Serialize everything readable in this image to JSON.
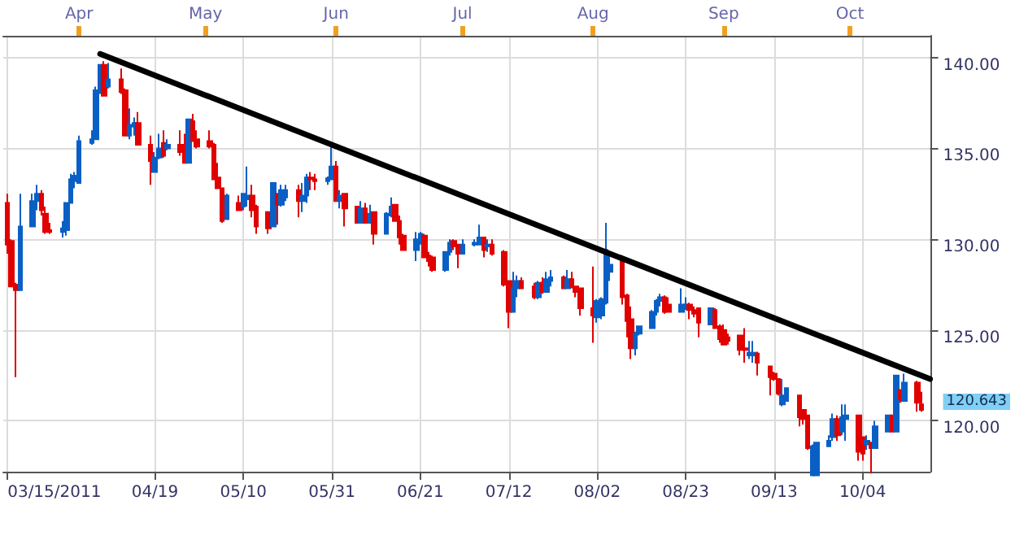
{
  "chart_data": {
    "type": "candlestick",
    "x": [
      "2011-03-15",
      "2011-03-16",
      "2011-03-17",
      "2011-03-18",
      "2011-03-21",
      "2011-03-22",
      "2011-03-23",
      "2011-03-24",
      "2011-03-25",
      "2011-03-28",
      "2011-03-29",
      "2011-03-30",
      "2011-03-31",
      "2011-04-01",
      "2011-04-04",
      "2011-04-05",
      "2011-04-06",
      "2011-04-07",
      "2011-04-08",
      "2011-04-11",
      "2011-04-12",
      "2011-04-13",
      "2011-04-14",
      "2011-04-15",
      "2011-04-18",
      "2011-04-19",
      "2011-04-20",
      "2011-04-21",
      "2011-04-22",
      "2011-04-25",
      "2011-04-26",
      "2011-04-27",
      "2011-04-28",
      "2011-04-29",
      "2011-05-02",
      "2011-05-03",
      "2011-05-04",
      "2011-05-05",
      "2011-05-06",
      "2011-05-09",
      "2011-05-10",
      "2011-05-11",
      "2011-05-12",
      "2011-05-13",
      "2011-05-16",
      "2011-05-17",
      "2011-05-18",
      "2011-05-19",
      "2011-05-20",
      "2011-05-23",
      "2011-05-24",
      "2011-05-25",
      "2011-05-26",
      "2011-05-27",
      "2011-05-30",
      "2011-05-31",
      "2011-06-01",
      "2011-06-02",
      "2011-06-03",
      "2011-06-06",
      "2011-06-07",
      "2011-06-08",
      "2011-06-09",
      "2011-06-10",
      "2011-06-13",
      "2011-06-14",
      "2011-06-15",
      "2011-06-16",
      "2011-06-17",
      "2011-06-20",
      "2011-06-21",
      "2011-06-22",
      "2011-06-23",
      "2011-06-24",
      "2011-06-27",
      "2011-06-28",
      "2011-06-29",
      "2011-06-30",
      "2011-07-01",
      "2011-07-04",
      "2011-07-05",
      "2011-07-06",
      "2011-07-07",
      "2011-07-08",
      "2011-07-11",
      "2011-07-12",
      "2011-07-13",
      "2011-07-14",
      "2011-07-15",
      "2011-07-18",
      "2011-07-19",
      "2011-07-20",
      "2011-07-21",
      "2011-07-22",
      "2011-07-25",
      "2011-07-26",
      "2011-07-27",
      "2011-07-28",
      "2011-07-29",
      "2011-08-01",
      "2011-08-02",
      "2011-08-03",
      "2011-08-04",
      "2011-08-05",
      "2011-08-08",
      "2011-08-09",
      "2011-08-10",
      "2011-08-11",
      "2011-08-12",
      "2011-08-15",
      "2011-08-16",
      "2011-08-17",
      "2011-08-18",
      "2011-08-19",
      "2011-08-22",
      "2011-08-23",
      "2011-08-24",
      "2011-08-25",
      "2011-08-26",
      "2011-08-29",
      "2011-08-30",
      "2011-08-31",
      "2011-09-01",
      "2011-09-02",
      "2011-09-05",
      "2011-09-06",
      "2011-09-07",
      "2011-09-08",
      "2011-09-09",
      "2011-09-12",
      "2011-09-13",
      "2011-09-14",
      "2011-09-15",
      "2011-09-16",
      "2011-09-19",
      "2011-09-20",
      "2011-09-21",
      "2011-09-22",
      "2011-09-23",
      "2011-09-26",
      "2011-09-27",
      "2011-09-28",
      "2011-09-29",
      "2011-09-30",
      "2011-10-03",
      "2011-10-04",
      "2011-10-05",
      "2011-10-06",
      "2011-10-07",
      "2011-10-10",
      "2011-10-11",
      "2011-10-12",
      "2011-10-13",
      "2011-10-14",
      "2011-10-17",
      "2011-10-18"
    ],
    "ohlc": [
      [
        132.0,
        132.5,
        129.2,
        129.7
      ],
      [
        129.9,
        130.0,
        127.4,
        127.4
      ],
      [
        127.5,
        127.6,
        122.4,
        127.2
      ],
      [
        127.2,
        132.5,
        127.2,
        130.7
      ],
      [
        130.7,
        132.5,
        130.7,
        132.1
      ],
      [
        132.1,
        133.0,
        131.6,
        132.5
      ],
      [
        132.5,
        132.7,
        131.3,
        131.6
      ],
      [
        131.4,
        131.8,
        130.3,
        130.4
      ],
      [
        130.5,
        130.9,
        130.3,
        130.4
      ],
      [
        130.4,
        131.0,
        130.1,
        130.6
      ],
      [
        130.5,
        132.0,
        130.2,
        132.0
      ],
      [
        132.0,
        133.6,
        132.0,
        133.3
      ],
      [
        133.2,
        133.7,
        132.8,
        133.5
      ],
      [
        133.1,
        135.7,
        133.1,
        135.4
      ],
      [
        135.3,
        136.0,
        135.2,
        135.5
      ],
      [
        135.5,
        138.4,
        135.5,
        138.2
      ],
      [
        138.2,
        139.6,
        138.0,
        139.6
      ],
      [
        139.6,
        139.8,
        137.9,
        137.9
      ],
      [
        138.4,
        139.7,
        138.3,
        138.8
      ],
      [
        138.8,
        139.4,
        138.0,
        138.1
      ],
      [
        138.2,
        138.3,
        135.7,
        135.7
      ],
      [
        135.7,
        137.2,
        135.5,
        136.3
      ],
      [
        136.2,
        136.7,
        135.7,
        136.4
      ],
      [
        136.4,
        137.0,
        135.2,
        135.2
      ],
      [
        135.2,
        135.7,
        133.0,
        134.3
      ],
      [
        133.7,
        134.8,
        133.7,
        134.5
      ],
      [
        134.5,
        135.8,
        134.4,
        135.0
      ],
      [
        135.3,
        136.0,
        134.5,
        134.6
      ],
      [
        135.0,
        135.5,
        134.9,
        135.2
      ],
      [
        135.2,
        136.0,
        134.6,
        134.8
      ],
      [
        135.1,
        135.8,
        134.2,
        134.2
      ],
      [
        134.2,
        136.6,
        134.2,
        136.6
      ],
      [
        136.5,
        136.9,
        135.4,
        135.4
      ],
      [
        135.5,
        136.0,
        135.0,
        135.1
      ],
      [
        135.4,
        136.0,
        135.0,
        135.1
      ],
      [
        135.2,
        135.3,
        133.3,
        133.3
      ],
      [
        133.4,
        134.2,
        132.8,
        132.8
      ],
      [
        132.8,
        132.8,
        130.9,
        131.0
      ],
      [
        131.1,
        132.5,
        131.1,
        132.4
      ],
      [
        132.0,
        132.4,
        131.6,
        131.6
      ],
      [
        131.8,
        132.5,
        131.6,
        132.5
      ],
      [
        132.2,
        134.0,
        131.8,
        132.4
      ],
      [
        132.4,
        133.0,
        131.2,
        131.6
      ],
      [
        131.8,
        131.9,
        130.3,
        130.7
      ],
      [
        131.5,
        131.5,
        130.3,
        130.6
      ],
      [
        130.7,
        133.1,
        130.7,
        133.1
      ],
      [
        132.5,
        132.5,
        130.8,
        131.9
      ],
      [
        131.9,
        133.0,
        131.8,
        132.7
      ],
      [
        132.3,
        133.0,
        132.1,
        132.7
      ],
      [
        132.7,
        133.0,
        131.2,
        132.1
      ],
      [
        132.1,
        133.1,
        131.5,
        132.4
      ],
      [
        132.4,
        133.6,
        132.0,
        133.4
      ],
      [
        133.4,
        133.7,
        132.7,
        133.3
      ],
      [
        133.3,
        133.6,
        132.7,
        133.2
      ],
      [
        133.2,
        133.45,
        133.0,
        133.35
      ],
      [
        133.3,
        135.2,
        133.3,
        134.0
      ],
      [
        134.0,
        134.3,
        132.1,
        132.1
      ],
      [
        132.1,
        132.7,
        131.7,
        132.4
      ],
      [
        132.5,
        132.5,
        130.7,
        131.7
      ],
      [
        131.8,
        131.8,
        130.9,
        130.9
      ],
      [
        130.9,
        132.1,
        130.9,
        131.7
      ],
      [
        131.7,
        132.0,
        130.9,
        130.9
      ],
      [
        130.9,
        131.9,
        130.9,
        131.4
      ],
      [
        131.5,
        131.5,
        129.7,
        130.3
      ],
      [
        130.3,
        131.5,
        130.3,
        131.4
      ],
      [
        131.3,
        132.3,
        131.2,
        131.8
      ],
      [
        131.9,
        131.9,
        131.0,
        131.0
      ],
      [
        131.0,
        131.3,
        129.7,
        130.1
      ],
      [
        130.2,
        130.3,
        129.4,
        129.4
      ],
      [
        129.4,
        130.4,
        128.8,
        130.0
      ],
      [
        130.0,
        130.4,
        129.7,
        130.3
      ],
      [
        130.2,
        130.3,
        129.0,
        129.0
      ],
      [
        129.1,
        129.3,
        128.5,
        128.8
      ],
      [
        129.0,
        129.1,
        128.2,
        128.3
      ],
      [
        128.3,
        129.3,
        128.2,
        129.3
      ],
      [
        129.3,
        130.0,
        129.1,
        129.8
      ],
      [
        129.9,
        130.0,
        129.4,
        129.6
      ],
      [
        129.7,
        129.7,
        128.4,
        129.2
      ],
      [
        129.2,
        130.0,
        129.2,
        129.7
      ],
      [
        129.7,
        130.0,
        129.6,
        129.8
      ],
      [
        129.7,
        130.8,
        129.7,
        130.1
      ],
      [
        130.1,
        130.1,
        129.0,
        129.4
      ],
      [
        129.6,
        130.0,
        129.3,
        129.7
      ],
      [
        129.7,
        130.0,
        129.1,
        129.2
      ],
      [
        129.3,
        129.4,
        127.4,
        127.5
      ],
      [
        127.7,
        127.7,
        125.1,
        126.0
      ],
      [
        126.0,
        128.2,
        126.0,
        127.3
      ],
      [
        127.3,
        128.0,
        126.8,
        127.7
      ],
      [
        127.7,
        127.9,
        127.3,
        127.3
      ],
      [
        127.4,
        127.6,
        126.7,
        126.8
      ],
      [
        126.8,
        127.7,
        126.7,
        127.6
      ],
      [
        127.6,
        127.9,
        127.0,
        127.1
      ],
      [
        127.1,
        128.2,
        127.1,
        127.8
      ],
      [
        127.7,
        128.3,
        127.4,
        127.9
      ],
      [
        127.9,
        128.0,
        127.3,
        127.3
      ],
      [
        127.3,
        128.3,
        127.3,
        127.8
      ],
      [
        127.8,
        128.2,
        127.3,
        127.4
      ],
      [
        127.4,
        127.4,
        126.8,
        127.1
      ],
      [
        127.3,
        127.3,
        125.8,
        126.2
      ],
      [
        126.2,
        128.5,
        124.3,
        125.8
      ],
      [
        125.7,
        126.7,
        125.4,
        126.6
      ],
      [
        125.8,
        126.8,
        125.6,
        126.7
      ],
      [
        126.5,
        130.9,
        126.4,
        129.4
      ],
      [
        128.2,
        129.1,
        127.7,
        128.6
      ],
      [
        128.8,
        128.8,
        126.4,
        126.8
      ],
      [
        126.9,
        127.0,
        124.6,
        125.5
      ],
      [
        125.6,
        126.3,
        123.4,
        124.0
      ],
      [
        124.0,
        124.9,
        123.6,
        124.8
      ],
      [
        124.8,
        125.2,
        124.7,
        125.2
      ],
      [
        125.1,
        126.1,
        125.1,
        126.0
      ],
      [
        126.0,
        126.7,
        125.8,
        126.6
      ],
      [
        126.6,
        127.0,
        126.3,
        126.8
      ],
      [
        126.8,
        126.9,
        125.9,
        126.0
      ],
      [
        126.4,
        126.8,
        126.0,
        126.0
      ],
      [
        126.0,
        127.3,
        126.0,
        126.4
      ],
      [
        126.35,
        126.8,
        126.1,
        126.4
      ],
      [
        126.4,
        126.5,
        125.6,
        126.1
      ],
      [
        126.1,
        126.3,
        125.7,
        125.9
      ],
      [
        126.2,
        126.2,
        124.6,
        125.4
      ],
      [
        125.3,
        126.2,
        125.3,
        126.2
      ],
      [
        126.1,
        126.2,
        125.1,
        125.1
      ],
      [
        125.2,
        125.3,
        124.3,
        124.5
      ],
      [
        125.0,
        125.3,
        124.2,
        124.2
      ],
      [
        124.6,
        124.8,
        124.2,
        124.4
      ],
      [
        124.7,
        124.7,
        123.6,
        123.9
      ],
      [
        124.0,
        125.1,
        123.2,
        123.9
      ],
      [
        123.6,
        124.4,
        123.4,
        123.75
      ],
      [
        123.6,
        124.4,
        123.2,
        123.75
      ],
      [
        123.7,
        123.8,
        122.5,
        123.2
      ],
      [
        123.0,
        123.0,
        121.4,
        122.4
      ],
      [
        122.6,
        122.7,
        122.2,
        122.3
      ],
      [
        122.3,
        122.3,
        121.4,
        121.5
      ],
      [
        120.9,
        122.3,
        120.8,
        121.4
      ],
      [
        121.1,
        121.8,
        121.1,
        121.8
      ],
      [
        121.4,
        121.4,
        119.7,
        120.2
      ],
      [
        120.6,
        120.6,
        119.8,
        120.1
      ],
      [
        120.3,
        120.3,
        118.4,
        118.5
      ],
      [
        117.0,
        118.7,
        117.0,
        118.6
      ],
      [
        117.0,
        118.8,
        117.0,
        118.8
      ],
      [
        118.6,
        119.2,
        118.6,
        118.9
      ],
      [
        119.1,
        120.4,
        118.9,
        120.1
      ],
      [
        120.1,
        120.3,
        118.9,
        119.2
      ],
      [
        119.4,
        120.9,
        119.2,
        120.2
      ],
      [
        120.1,
        120.9,
        118.9,
        120.3
      ],
      [
        120.3,
        120.3,
        117.8,
        118.3
      ],
      [
        119.1,
        119.1,
        117.8,
        118.2
      ],
      [
        118.7,
        119.2,
        118.4,
        118.9
      ],
      [
        118.8,
        118.8,
        117.1,
        118.5
      ],
      [
        118.5,
        120.0,
        118.5,
        119.7
      ],
      [
        119.4,
        120.3,
        119.4,
        120.3
      ],
      [
        120.3,
        120.3,
        119.4,
        119.4
      ],
      [
        119.4,
        122.5,
        119.4,
        122.5
      ],
      [
        121.7,
        121.7,
        121.0,
        121.2
      ],
      [
        121.1,
        122.6,
        121.1,
        122.1
      ],
      [
        122.1,
        122.2,
        120.5,
        121.0
      ],
      [
        120.9,
        121.6,
        120.5,
        120.6
      ]
    ],
    "series": [
      {
        "type": "line",
        "x": [
          "2011-04-06",
          "2011-10-20"
        ],
        "values": [
          140.2,
          122.3
        ],
        "color": "#000000",
        "marker": "none"
      }
    ],
    "xlim": [
      "2011-03-14",
      "2011-10-20"
    ],
    "xticks": [
      {
        "value": "2011-03-15",
        "label": "03/15/2011"
      },
      {
        "value": "2011-04-19",
        "label": "04/19"
      },
      {
        "value": "2011-05-10",
        "label": "05/10"
      },
      {
        "value": "2011-05-31",
        "label": "05/31"
      },
      {
        "value": "2011-06-21",
        "label": "06/21"
      },
      {
        "value": "2011-07-12",
        "label": "07/12"
      },
      {
        "value": "2011-08-02",
        "label": "08/02"
      },
      {
        "value": "2011-08-23",
        "label": "08/23"
      },
      {
        "value": "2011-09-13",
        "label": "09/13"
      },
      {
        "value": "2011-10-04",
        "label": "10/04"
      }
    ],
    "x2lim": [
      "2011-03-14",
      "2011-10-20"
    ],
    "x2ticks": [
      {
        "value": "2011-04-01",
        "label": "Apr"
      },
      {
        "value": "2011-05-01",
        "label": "May"
      },
      {
        "value": "2011-06-01",
        "label": "Jun"
      },
      {
        "value": "2011-07-01",
        "label": "Jul"
      },
      {
        "value": "2011-08-01",
        "label": "Aug"
      },
      {
        "value": "2011-09-01",
        "label": "Sep"
      },
      {
        "value": "2011-10-01",
        "label": "Oct"
      }
    ],
    "ylim": [
      117.2,
      141.2
    ],
    "yticks": [
      {
        "value": 120,
        "label": "120.00"
      },
      {
        "value": 125,
        "label": "125.00"
      },
      {
        "value": 130,
        "label": "130.00"
      },
      {
        "value": 135,
        "label": "135.00"
      },
      {
        "value": 140,
        "label": "140.00"
      }
    ],
    "grid": true,
    "annotations": [
      "120.643"
    ]
  }
}
